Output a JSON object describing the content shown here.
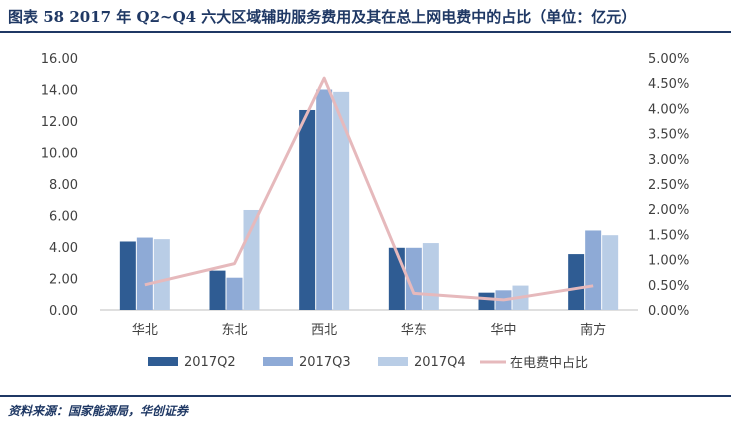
{
  "header": {
    "title": "图表 58  2017 年 Q2~Q4 六大区域辅助服务费用及其在总上网电费中的占比（单位：亿元）"
  },
  "footer": {
    "source": "资料来源：国家能源局，华创证券"
  },
  "colors": {
    "q2": "#2f5c93",
    "q3": "#8eaad6",
    "q4": "#b9cde6",
    "ratio_line": "#e6b9bc",
    "axis": "#bfbfbf",
    "text": "#404040",
    "brand": "#1f3864"
  },
  "chart_data": {
    "type": "bar",
    "title": "2017 年 Q2~Q4 六大区域辅助服务费用及其在总上网电费中的占比（单位：亿元）",
    "categories": [
      "华北",
      "东北",
      "西北",
      "华东",
      "华中",
      "南方"
    ],
    "series": [
      {
        "name": "2017Q2",
        "values": [
          4.35,
          2.5,
          12.7,
          3.95,
          1.1,
          3.55
        ]
      },
      {
        "name": "2017Q3",
        "values": [
          4.6,
          2.05,
          14.0,
          3.95,
          1.25,
          5.05
        ]
      },
      {
        "name": "2017Q4",
        "values": [
          4.5,
          6.35,
          13.85,
          4.25,
          1.55,
          4.75
        ]
      }
    ],
    "line_series": {
      "name": "在电费中占比",
      "axis": "right",
      "values": [
        0.5,
        0.92,
        4.6,
        0.33,
        0.2,
        0.48
      ]
    },
    "y_left": {
      "min": 0,
      "max": 16,
      "step": 2,
      "ticks": [
        "0.00",
        "2.00",
        "4.00",
        "6.00",
        "8.00",
        "10.00",
        "12.00",
        "14.00",
        "16.00"
      ]
    },
    "y_right": {
      "min": 0,
      "max": 5,
      "step": 0.5,
      "ticks": [
        "0.00%",
        "0.50%",
        "1.00%",
        "1.50%",
        "2.00%",
        "2.50%",
        "3.00%",
        "3.50%",
        "4.00%",
        "4.50%",
        "5.00%"
      ]
    },
    "grid": false,
    "legend_position": "bottom"
  }
}
